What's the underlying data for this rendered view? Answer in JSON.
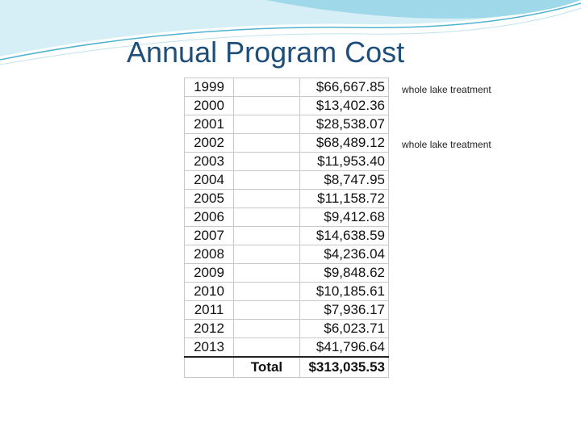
{
  "slide": {
    "title": "Annual Program Cost"
  },
  "cost_table": {
    "rows": [
      {
        "year": "1999",
        "amount": "$66,667.85"
      },
      {
        "year": "2000",
        "amount": "$13,402.36"
      },
      {
        "year": "2001",
        "amount": "$28,538.07"
      },
      {
        "year": "2002",
        "amount": "$68,489.12"
      },
      {
        "year": "2003",
        "amount": "$11,953.40"
      },
      {
        "year": "2004",
        "amount": "$8,747.95"
      },
      {
        "year": "2005",
        "amount": "$11,158.72"
      },
      {
        "year": "2006",
        "amount": "$9,412.68"
      },
      {
        "year": "2007",
        "amount": "$14,638.59"
      },
      {
        "year": "2008",
        "amount": "$4,236.04"
      },
      {
        "year": "2009",
        "amount": "$9,848.62"
      },
      {
        "year": "2010",
        "amount": "$10,185.61"
      },
      {
        "year": "2011",
        "amount": "$7,936.17"
      },
      {
        "year": "2012",
        "amount": "$6,023.71"
      },
      {
        "year": "2013",
        "amount": "$41,796.64"
      }
    ],
    "total_label": "Total",
    "total_amount": "$313,035.53"
  },
  "notes": [
    {
      "text": "whole lake treatment",
      "year": "1999"
    },
    {
      "text": "whole lake treatment",
      "year": "2002"
    }
  ],
  "colors": {
    "title": "#1f4e79",
    "swoosh_fill": "#9fd8e8",
    "swoosh_line": "#4fb3cf"
  }
}
